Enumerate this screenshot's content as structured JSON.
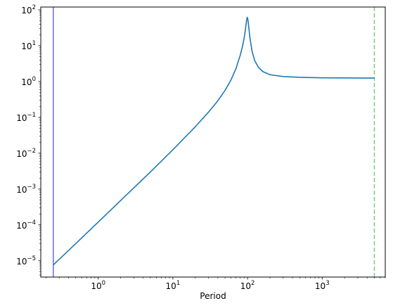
{
  "chart_data": {
    "type": "line",
    "title": "",
    "xlabel": "Period",
    "ylabel": "",
    "xscale": "log",
    "yscale": "log",
    "xlim": [
      0.17,
      7000
    ],
    "ylim": [
      3.5e-06,
      120
    ],
    "grid": false,
    "xticks": [
      {
        "value": 1,
        "base": "10",
        "exp": "0"
      },
      {
        "value": 10,
        "base": "10",
        "exp": "1"
      },
      {
        "value": 100,
        "base": "10",
        "exp": "2"
      },
      {
        "value": 1000,
        "base": "10",
        "exp": "3"
      }
    ],
    "yticks": [
      {
        "value": 1e-05,
        "base": "10",
        "exp": "−5"
      },
      {
        "value": 0.0001,
        "base": "10",
        "exp": "−4"
      },
      {
        "value": 0.001,
        "base": "10",
        "exp": "−3"
      },
      {
        "value": 0.01,
        "base": "10",
        "exp": "−2"
      },
      {
        "value": 0.1,
        "base": "10",
        "exp": "−1"
      },
      {
        "value": 1,
        "base": "10",
        "exp": "0"
      },
      {
        "value": 10,
        "base": "10",
        "exp": "1"
      },
      {
        "value": 100,
        "base": "10",
        "exp": "2"
      }
    ],
    "series": [
      {
        "color": "#1f77b4",
        "x": [
          0.25,
          0.5,
          1,
          2,
          5,
          10,
          20,
          30,
          40,
          50,
          60,
          70,
          80,
          85,
          90,
          94,
          97,
          99,
          101,
          104,
          108,
          115,
          125,
          140,
          160,
          200,
          300,
          500,
          1000,
          2000,
          5000
        ],
        "y": [
          7.6e-06,
          3e-05,
          0.00012,
          0.00048,
          0.003,
          0.0125,
          0.055,
          0.14,
          0.29,
          0.57,
          1.1,
          2.3,
          5.5,
          9,
          16,
          30,
          50,
          62,
          55,
          32,
          16,
          7,
          3.8,
          2.5,
          1.9,
          1.55,
          1.38,
          1.31,
          1.27,
          1.26,
          1.25
        ]
      }
    ],
    "vlines": [
      {
        "x": 0.25,
        "color": "#0000ff",
        "style": "solid"
      },
      {
        "x": 5000,
        "color": "#2ca02c",
        "style": "dashed"
      }
    ]
  }
}
